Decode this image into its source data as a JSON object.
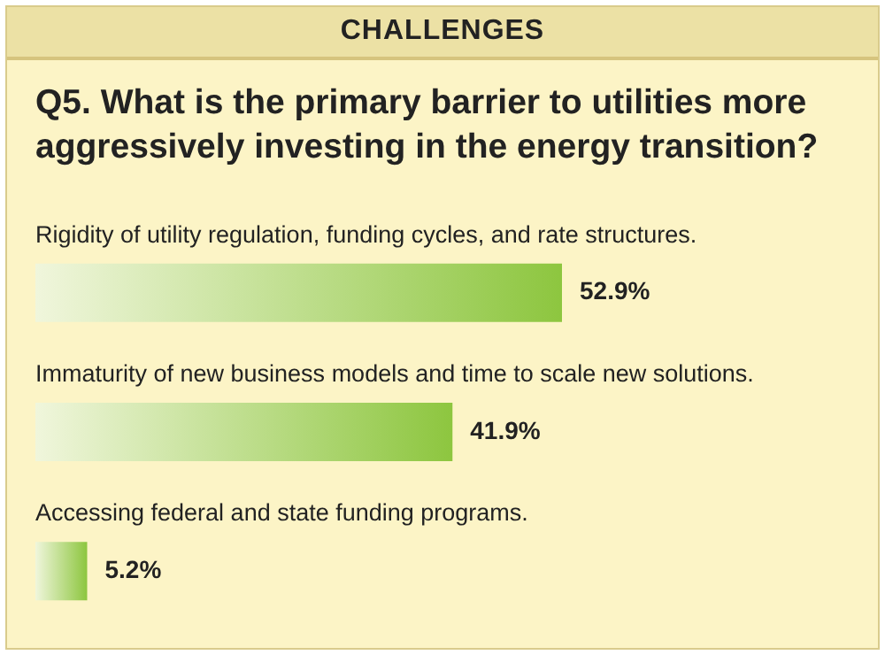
{
  "chart_data": {
    "type": "bar",
    "orientation": "horizontal",
    "title": "Q5. What is the primary barrier to utilities more aggressively investing in the energy transition?",
    "annotations": [
      "CHALLENGES"
    ],
    "categories": [
      "Rigidity of utility regulation, funding cycles, and rate structures.",
      "Immaturity of new business models and time to scale new solutions.",
      "Accessing federal and state funding programs."
    ],
    "values": [
      52.9,
      41.9,
      5.2
    ],
    "value_labels": [
      "52.9%",
      "41.9%",
      "5.2%"
    ],
    "color": "#8dc63f",
    "legend": false
  }
}
